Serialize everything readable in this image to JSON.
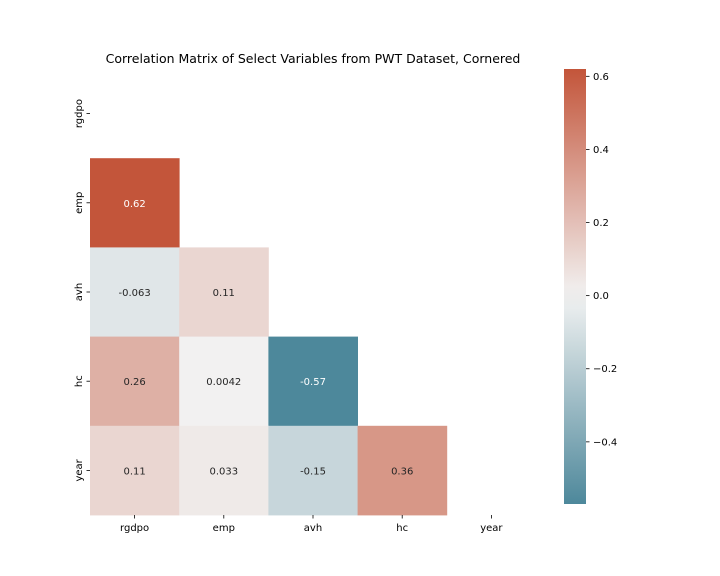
{
  "chart_data": {
    "type": "heatmap",
    "title": "Correlation Matrix of Select Variables from PWT Dataset, Cornered",
    "row_labels": [
      "rgdpo",
      "emp",
      "avh",
      "hc",
      "year"
    ],
    "col_labels": [
      "rgdpo",
      "emp",
      "avh",
      "hc",
      "year"
    ],
    "mask": "upper-triangle-including-diagonal",
    "cells": [
      {
        "row": 1,
        "col": 0,
        "value": 0.62,
        "label": "0.62"
      },
      {
        "row": 2,
        "col": 0,
        "value": -0.063,
        "label": "-0.063"
      },
      {
        "row": 2,
        "col": 1,
        "value": 0.11,
        "label": "0.11"
      },
      {
        "row": 3,
        "col": 0,
        "value": 0.26,
        "label": "0.26"
      },
      {
        "row": 3,
        "col": 1,
        "value": 0.0042,
        "label": "0.0042"
      },
      {
        "row": 3,
        "col": 2,
        "value": -0.57,
        "label": "-0.57"
      },
      {
        "row": 4,
        "col": 0,
        "value": 0.11,
        "label": "0.11"
      },
      {
        "row": 4,
        "col": 1,
        "value": 0.033,
        "label": "0.033"
      },
      {
        "row": 4,
        "col": 2,
        "value": -0.15,
        "label": "-0.15"
      },
      {
        "row": 4,
        "col": 3,
        "value": 0.36,
        "label": "0.36"
      }
    ],
    "colorbar": {
      "vmin": -0.57,
      "vmax": 0.62,
      "ticks": [
        0.6,
        0.4,
        0.2,
        0.0,
        -0.2,
        -0.4
      ],
      "tick_labels": [
        "0.6",
        "0.4",
        "0.2",
        "0.0",
        "−0.2",
        "−0.4"
      ],
      "negative_color": "#3f7f93",
      "center_color": "#f2f2f2",
      "positive_color": "#c3553a"
    },
    "grid": false
  }
}
